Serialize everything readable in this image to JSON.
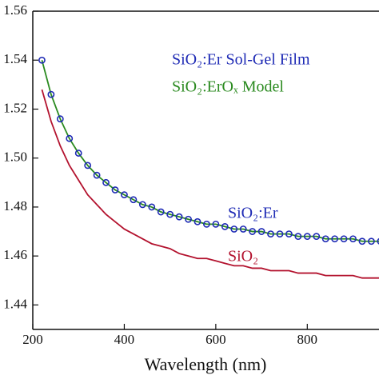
{
  "chart_data": {
    "type": "line",
    "x_label": "Wavelength (nm)",
    "xlim": [
      200,
      955
    ],
    "ylim": [
      1.43,
      1.56
    ],
    "xticks": [
      200,
      400,
      600,
      800
    ],
    "yticks": [
      1.44,
      1.46,
      1.48,
      {
        "value": 1.5,
        "label": "1.50"
      },
      1.52,
      1.54,
      1.56
    ],
    "series": [
      {
        "name": "SiO₂:Er Sol-Gel Film",
        "color": "#1f2bb5",
        "marker": "circle",
        "x": [
          220,
          240,
          260,
          280,
          300,
          320,
          340,
          360,
          380,
          400,
          420,
          440,
          460,
          480,
          500,
          520,
          540,
          560,
          580,
          600,
          620,
          640,
          660,
          680,
          700,
          720,
          740,
          760,
          780,
          800,
          820,
          840,
          860,
          880,
          900,
          920,
          940,
          960
        ],
        "values": [
          1.54,
          1.526,
          1.516,
          1.508,
          1.502,
          1.497,
          1.493,
          1.49,
          1.487,
          1.485,
          1.483,
          1.481,
          1.48,
          1.478,
          1.477,
          1.476,
          1.475,
          1.474,
          1.473,
          1.473,
          1.472,
          1.471,
          1.471,
          1.47,
          1.47,
          1.469,
          1.469,
          1.469,
          1.468,
          1.468,
          1.468,
          1.467,
          1.467,
          1.467,
          1.467,
          1.466,
          1.466,
          1.466
        ]
      },
      {
        "name": "SiO₂:ErOₓ Model",
        "color": "#2a8a1f",
        "marker": "line",
        "x": [
          220,
          240,
          260,
          280,
          300,
          320,
          340,
          360,
          380,
          400,
          420,
          440,
          460,
          480,
          500,
          520,
          540,
          560,
          580,
          600,
          620,
          640,
          660,
          680,
          700,
          720,
          740,
          760,
          780,
          800,
          820,
          840,
          860,
          880,
          900,
          920,
          940,
          960
        ],
        "values": [
          1.54,
          1.526,
          1.516,
          1.508,
          1.502,
          1.497,
          1.493,
          1.49,
          1.487,
          1.485,
          1.483,
          1.481,
          1.48,
          1.478,
          1.477,
          1.476,
          1.475,
          1.474,
          1.473,
          1.473,
          1.472,
          1.471,
          1.471,
          1.47,
          1.47,
          1.469,
          1.469,
          1.469,
          1.468,
          1.468,
          1.468,
          1.467,
          1.467,
          1.467,
          1.467,
          1.466,
          1.466,
          1.466
        ]
      },
      {
        "name": "SiO₂",
        "color": "#b3122e",
        "marker": "line",
        "x": [
          220,
          240,
          260,
          280,
          300,
          320,
          340,
          360,
          380,
          400,
          420,
          440,
          460,
          480,
          500,
          520,
          540,
          560,
          580,
          600,
          620,
          640,
          660,
          680,
          700,
          720,
          740,
          760,
          780,
          800,
          820,
          840,
          860,
          880,
          900,
          920,
          940,
          960
        ],
        "values": [
          1.528,
          1.515,
          1.505,
          1.497,
          1.491,
          1.485,
          1.481,
          1.477,
          1.474,
          1.471,
          1.469,
          1.467,
          1.465,
          1.464,
          1.463,
          1.461,
          1.46,
          1.459,
          1.459,
          1.458,
          1.457,
          1.456,
          1.456,
          1.455,
          1.455,
          1.454,
          1.454,
          1.454,
          1.453,
          1.453,
          1.453,
          1.452,
          1.452,
          1.452,
          1.452,
          1.451,
          1.451,
          1.451
        ]
      }
    ],
    "annotations": [
      "SiO₂:Er",
      "SiO₂"
    ]
  }
}
